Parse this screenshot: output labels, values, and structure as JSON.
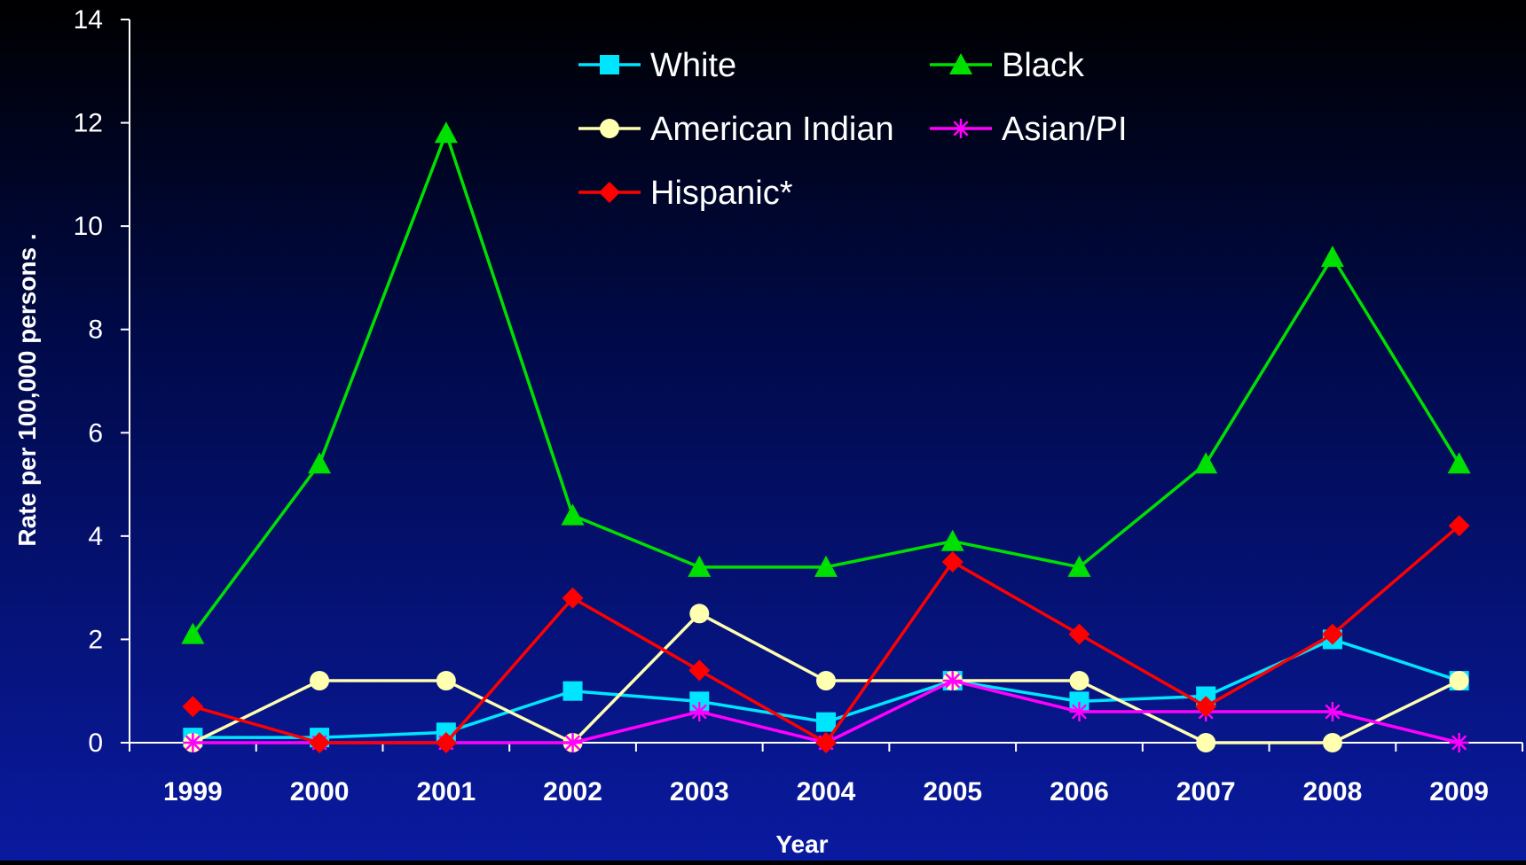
{
  "chart_data": {
    "type": "line",
    "title": "",
    "xlabel": "Year",
    "ylabel": "Rate per 100,000 persons .",
    "x": [
      "1999",
      "2000",
      "2001",
      "2002",
      "2003",
      "2004",
      "2005",
      "2006",
      "2007",
      "2008",
      "2009"
    ],
    "ylim": [
      0,
      14
    ],
    "yticks": [
      0,
      2,
      4,
      6,
      8,
      10,
      12,
      14
    ],
    "grid": false,
    "legend_placement": "top-center",
    "series": [
      {
        "name": "White",
        "color": "#00e5ff",
        "marker": "square",
        "values": [
          0.1,
          0.1,
          0.2,
          1.0,
          0.8,
          0.4,
          1.2,
          0.8,
          0.9,
          2.0,
          1.2
        ]
      },
      {
        "name": "Black",
        "color": "#00e000",
        "marker": "triangle",
        "values": [
          2.1,
          5.4,
          11.8,
          4.4,
          3.4,
          3.4,
          3.9,
          3.4,
          5.4,
          9.4,
          5.4
        ]
      },
      {
        "name": "American Indian",
        "color": "#ffffb0",
        "marker": "circle",
        "values": [
          0.0,
          1.2,
          1.2,
          0.0,
          2.5,
          1.2,
          1.2,
          1.2,
          0.0,
          0.0,
          1.2
        ]
      },
      {
        "name": "Asian/PI",
        "color": "#ff00ff",
        "marker": "asterisk",
        "values": [
          0.0,
          0.0,
          0.0,
          0.0,
          0.6,
          0.0,
          1.2,
          0.6,
          0.6,
          0.6,
          0.0
        ]
      },
      {
        "name": "Hispanic*",
        "color": "#ff0000",
        "marker": "diamond",
        "values": [
          0.7,
          0.0,
          0.0,
          2.8,
          1.4,
          0.0,
          3.5,
          2.1,
          0.7,
          2.1,
          4.2
        ]
      }
    ]
  }
}
